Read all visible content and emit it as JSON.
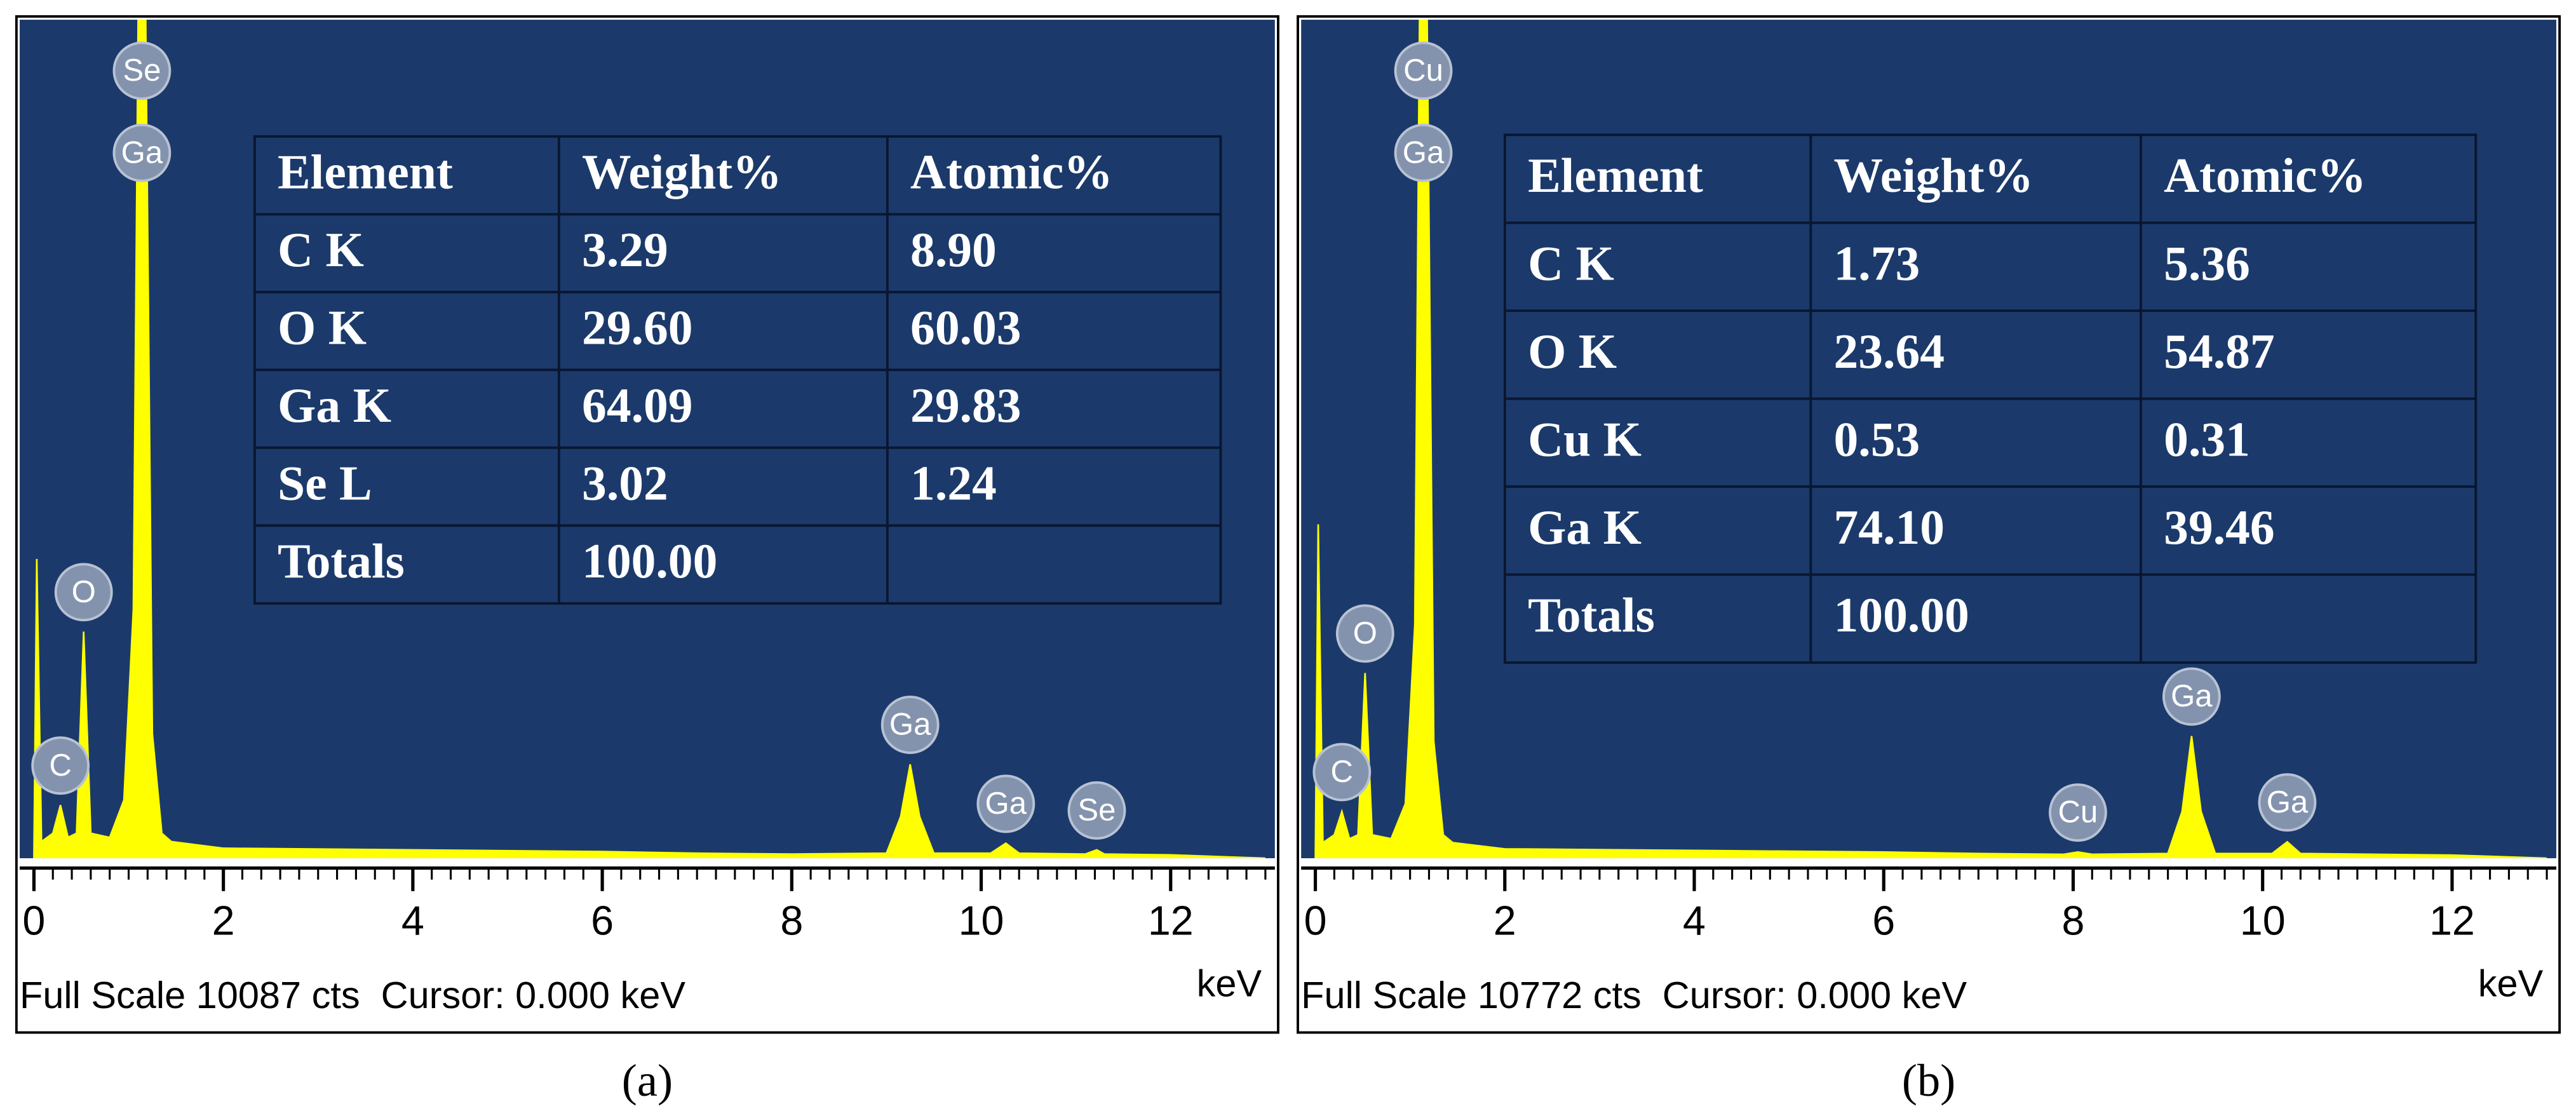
{
  "chart_data": [
    {
      "type": "area",
      "caption": "(a)",
      "footer": "Full Scale 10087 cts  Cursor: 0.000 keV",
      "xlabel": "keV",
      "xlim": [
        -0.15,
        13.1
      ],
      "xticks": [
        0,
        2,
        4,
        6,
        8,
        10,
        12
      ],
      "xminor": 0.2,
      "ylim": [
        0,
        10087
      ],
      "color": "#ffff00",
      "x": [
        0.0,
        0.03,
        0.08,
        0.2,
        0.28,
        0.36,
        0.45,
        0.525,
        0.6,
        0.8,
        0.95,
        1.05,
        1.1,
        1.18,
        1.25,
        1.35,
        1.45,
        2,
        4,
        6,
        7,
        8,
        9.0,
        9.15,
        9.25,
        9.35,
        9.5,
        10.1,
        10.26,
        10.4,
        11.1,
        11.22,
        11.3,
        12,
        13
      ],
      "values": [
        0,
        3600,
        200,
        300,
        640,
        250,
        300,
        2726,
        300,
        250,
        700,
        3000,
        10087,
        10087,
        1500,
        300,
        200,
        120,
        100,
        80,
        60,
        50,
        60,
        500,
        1130,
        500,
        60,
        60,
        180,
        60,
        50,
        100,
        50,
        40,
        0
      ],
      "peak_labels": [
        {
          "label": "Se",
          "energy": 1.14
        },
        {
          "label": "Ga",
          "energy": 1.14
        },
        {
          "label": "O",
          "energy": 0.525
        },
        {
          "label": "C",
          "energy": 0.28
        },
        {
          "label": "Ga",
          "energy": 9.25
        },
        {
          "label": "Ga",
          "energy": 10.26
        },
        {
          "label": "Se",
          "energy": 11.22
        }
      ],
      "table": {
        "columns": [
          "Element",
          "Weight%",
          "Atomic%"
        ],
        "rows": [
          [
            "C K",
            "3.29",
            "8.90"
          ],
          [
            "O K",
            "29.60",
            "60.03"
          ],
          [
            "Ga K",
            "64.09",
            "29.83"
          ],
          [
            "Se L",
            "3.02",
            "1.24"
          ],
          [
            "Totals",
            "100.00",
            null
          ]
        ]
      }
    },
    {
      "type": "area",
      "caption": "(b)",
      "footer": "Full Scale 10772 cts  Cursor: 0.000 keV",
      "xlabel": "keV",
      "xlim": [
        -0.15,
        13.1
      ],
      "xticks": [
        0,
        2,
        4,
        6,
        8,
        10,
        12
      ],
      "xminor": 0.2,
      "ylim": [
        0,
        10772
      ],
      "color": "#ffff00",
      "x": [
        0.0,
        0.03,
        0.08,
        0.2,
        0.28,
        0.36,
        0.45,
        0.525,
        0.6,
        0.8,
        0.95,
        1.05,
        1.1,
        1.18,
        1.25,
        1.35,
        1.45,
        2,
        4,
        6,
        7,
        7.9,
        8.05,
        8.2,
        9.0,
        9.15,
        9.25,
        9.35,
        9.5,
        10.1,
        10.26,
        10.4,
        12,
        13
      ],
      "values": [
        0,
        4290,
        200,
        300,
        600,
        250,
        300,
        2380,
        300,
        250,
        700,
        3000,
        10772,
        10772,
        1500,
        300,
        200,
        120,
        100,
        80,
        60,
        50,
        80,
        50,
        60,
        600,
        1570,
        600,
        60,
        60,
        210,
        60,
        40,
        0
      ],
      "peak_labels": [
        {
          "label": "Cu",
          "energy": 1.14
        },
        {
          "label": "Ga",
          "energy": 1.14
        },
        {
          "label": "O",
          "energy": 0.525
        },
        {
          "label": "C",
          "energy": 0.28
        },
        {
          "label": "Cu",
          "energy": 8.05
        },
        {
          "label": "Ga",
          "energy": 9.25
        },
        {
          "label": "Ga",
          "energy": 10.26
        }
      ],
      "table": {
        "columns": [
          "Element",
          "Weight%",
          "Atomic%"
        ],
        "rows": [
          [
            "C K",
            "1.73",
            "5.36"
          ],
          [
            "O K",
            "23.64",
            "54.87"
          ],
          [
            "Cu K",
            "0.53",
            "0.31"
          ],
          [
            "Ga K",
            "74.10",
            "39.46"
          ],
          [
            "Totals",
            "100.00",
            null
          ]
        ]
      }
    }
  ]
}
